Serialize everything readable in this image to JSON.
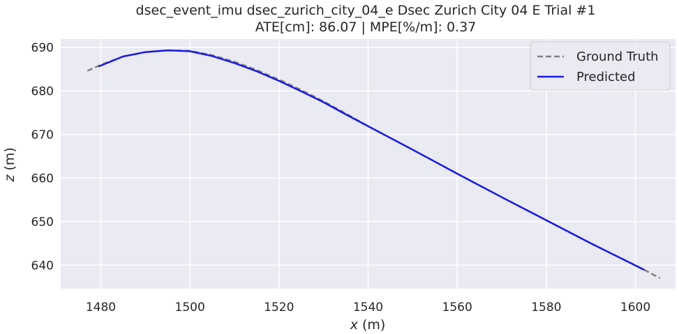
{
  "chart_data": {
    "type": "line",
    "title": "dsec_event_imu dsec_zurich_city_04_e Dsec Zurich City 04 E Trial #1",
    "subtitle": "ATE[cm]: 86.07 | MPE[%/m]: 0.37",
    "xlabel_var": "x",
    "xlabel_unit": " (m)",
    "ylabel_var": "z",
    "ylabel_unit": " (m)",
    "xlim": [
      1471,
      1609
    ],
    "ylim": [
      634.6,
      691.9
    ],
    "xticks": [
      1480,
      1500,
      1520,
      1540,
      1560,
      1580,
      1600
    ],
    "yticks": [
      640,
      650,
      660,
      670,
      680,
      690
    ],
    "grid": true,
    "legend_position": "top-right",
    "series": [
      {
        "name": "Ground Truth",
        "style": "dashed",
        "color": "#808080",
        "points": [
          [
            1477.0,
            684.6
          ],
          [
            1480.0,
            686.0
          ],
          [
            1485.0,
            687.9
          ],
          [
            1490.0,
            688.9
          ],
          [
            1495.0,
            689.3
          ],
          [
            1500.0,
            689.2
          ],
          [
            1505.0,
            688.2
          ],
          [
            1510.0,
            686.7
          ],
          [
            1515.0,
            684.8
          ],
          [
            1520.0,
            682.6
          ],
          [
            1525.0,
            680.2
          ],
          [
            1530.0,
            677.6
          ],
          [
            1535.0,
            674.8
          ],
          [
            1540.0,
            671.9
          ],
          [
            1550.0,
            666.5
          ],
          [
            1560.0,
            661.0
          ],
          [
            1570.0,
            655.6
          ],
          [
            1580.0,
            650.3
          ],
          [
            1590.0,
            645.0
          ],
          [
            1600.0,
            640.0
          ],
          [
            1605.5,
            637.0
          ]
        ]
      },
      {
        "name": "Predicted",
        "style": "solid",
        "color": "#1a1ae6",
        "points": [
          [
            1479.5,
            685.6
          ],
          [
            1485.0,
            687.9
          ],
          [
            1490.0,
            688.9
          ],
          [
            1495.0,
            689.3
          ],
          [
            1500.0,
            689.1
          ],
          [
            1505.0,
            688.0
          ],
          [
            1510.0,
            686.4
          ],
          [
            1515.0,
            684.5
          ],
          [
            1520.0,
            682.3
          ],
          [
            1525.0,
            679.9
          ],
          [
            1530.0,
            677.4
          ],
          [
            1535.0,
            674.6
          ],
          [
            1540.0,
            671.9
          ],
          [
            1550.0,
            666.5
          ],
          [
            1560.0,
            661.0
          ],
          [
            1570.0,
            655.6
          ],
          [
            1580.0,
            650.3
          ],
          [
            1590.0,
            645.0
          ],
          [
            1602.0,
            638.9
          ]
        ]
      }
    ]
  },
  "colors": {
    "plot_background": "#eaeaf2",
    "grid": "#ffffff",
    "text": "#262626"
  }
}
